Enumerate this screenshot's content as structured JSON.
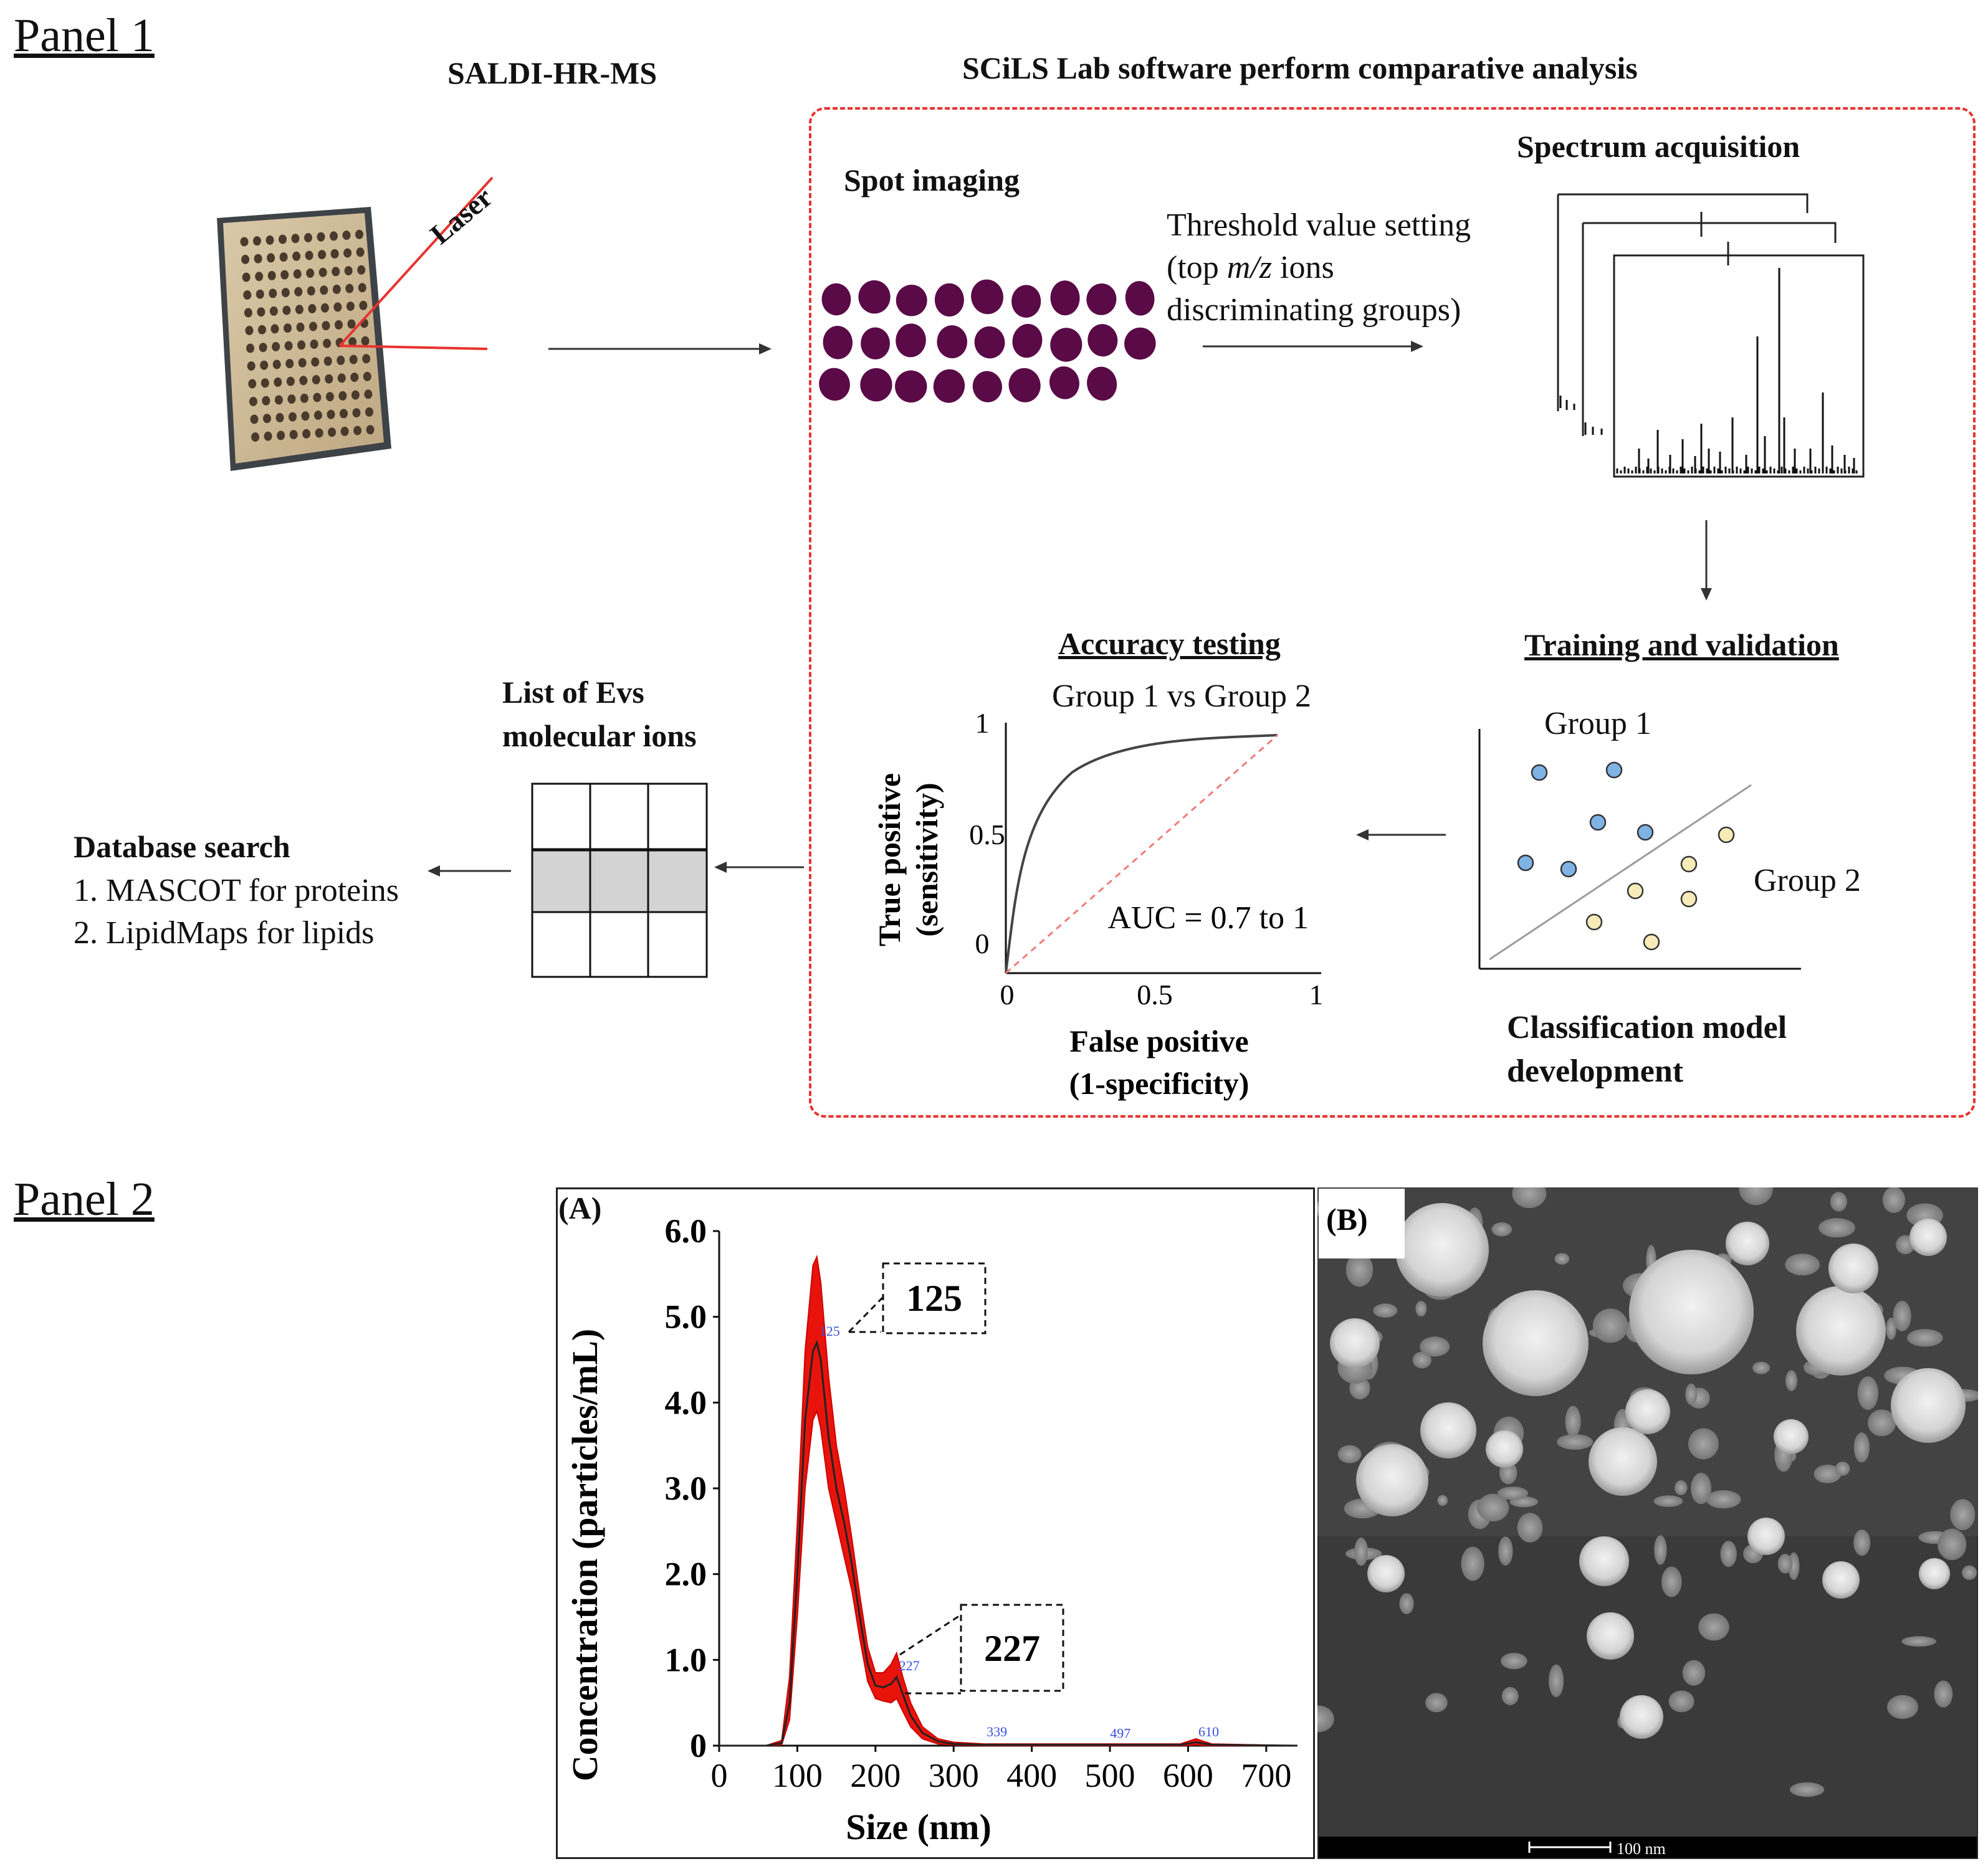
{
  "panel1": {
    "title": "Panel 1",
    "saldi_label": "SALDI-HR-MS",
    "scils_label": "SCiLS Lab software perform comparative analysis",
    "laser_label": "Laser",
    "spot_imaging": "Spot imaging",
    "threshold": {
      "line1": "Threshold value setting",
      "line2_pre": "(top ",
      "line2_mz": "m/z",
      "line2_post": " ions",
      "line3": "discriminating groups)"
    },
    "spectrum_acquisition": "Spectrum acquisition",
    "training_title": "Training and validation",
    "group1": "Group 1",
    "group2": "Group 2",
    "classification_line1": "Classification model",
    "classification_line2": "development",
    "accuracy_title": "Accuracy testing",
    "accuracy_subtitle": "Group 1 vs Group 2",
    "roc": {
      "ylabel_line1": "True positive",
      "ylabel_line2": "(sensitivity)",
      "xlabel_line1": "False positive",
      "xlabel_line2": "(1-specificity)",
      "auc": "AUC = 0.7 to 1",
      "x_ticks": [
        "0",
        "0.5",
        "1"
      ],
      "y_ticks": [
        "0",
        "0.5",
        "1"
      ]
    },
    "list_title_line1": "List of Evs",
    "list_title_line2": "molecular ions",
    "database_title": "Database search",
    "database_items": [
      "1. MASCOT for proteins",
      "2. LipidMaps for lipids"
    ],
    "colors": {
      "dashed_box": "#e8332f",
      "spots": "#5a0a46",
      "group1_dot": "#7fb2e5",
      "group2_dot": "#f7ecb8",
      "nta_fill": "#e8140c"
    }
  },
  "panel2": {
    "title": "Panel 2",
    "a_label": "(A)",
    "b_label": "(B)",
    "scale_bar": "100 nm",
    "callouts": [
      "125",
      "227"
    ],
    "small_peak_labels": [
      "125",
      "227",
      "339",
      "497",
      "610"
    ]
  },
  "chart_data": {
    "type": "line",
    "title": "",
    "xlabel": "Size (nm)",
    "ylabel": "Concentration (particles/mL)",
    "xlim": [
      0,
      740
    ],
    "ylim": [
      0,
      6.0
    ],
    "x_ticks": [
      0,
      100,
      200,
      300,
      400,
      500,
      600,
      700
    ],
    "y_ticks": [
      "0",
      "1.0",
      "2.0",
      "3.0",
      "4.0",
      "5.0",
      "6.0"
    ],
    "series": [
      {
        "x": [
          0,
          60,
          80,
          90,
          100,
          110,
          120,
          125,
          130,
          140,
          150,
          160,
          170,
          180,
          190,
          200,
          210,
          220,
          227,
          235,
          245,
          260,
          280,
          300,
          339,
          400,
          497,
          590,
          610,
          630,
          740
        ],
        "y": [
          0,
          0,
          0.03,
          0.5,
          2.0,
          3.8,
          4.6,
          4.7,
          4.5,
          3.6,
          3.0,
          2.6,
          2.1,
          1.5,
          0.95,
          0.7,
          0.68,
          0.72,
          0.8,
          0.6,
          0.35,
          0.15,
          0.05,
          0.02,
          0.01,
          0.01,
          0.01,
          0.01,
          0.04,
          0.01,
          0
        ],
        "upper": [
          0,
          0,
          0.06,
          0.8,
          2.6,
          4.6,
          5.6,
          5.7,
          5.4,
          4.3,
          3.5,
          3.0,
          2.4,
          1.75,
          1.15,
          0.85,
          0.85,
          0.95,
          1.08,
          0.8,
          0.5,
          0.22,
          0.08,
          0.04,
          0.02,
          0.02,
          0.02,
          0.02,
          0.08,
          0.02,
          0
        ],
        "lower": [
          0,
          0,
          0.01,
          0.3,
          1.5,
          3.0,
          3.8,
          3.9,
          3.7,
          3.0,
          2.6,
          2.2,
          1.8,
          1.25,
          0.75,
          0.55,
          0.52,
          0.5,
          0.55,
          0.4,
          0.22,
          0.08,
          0.02,
          0.01,
          0,
          0,
          0,
          0,
          0.01,
          0,
          0
        ]
      }
    ],
    "peaks": [
      125,
      227,
      339,
      497,
      610
    ]
  }
}
